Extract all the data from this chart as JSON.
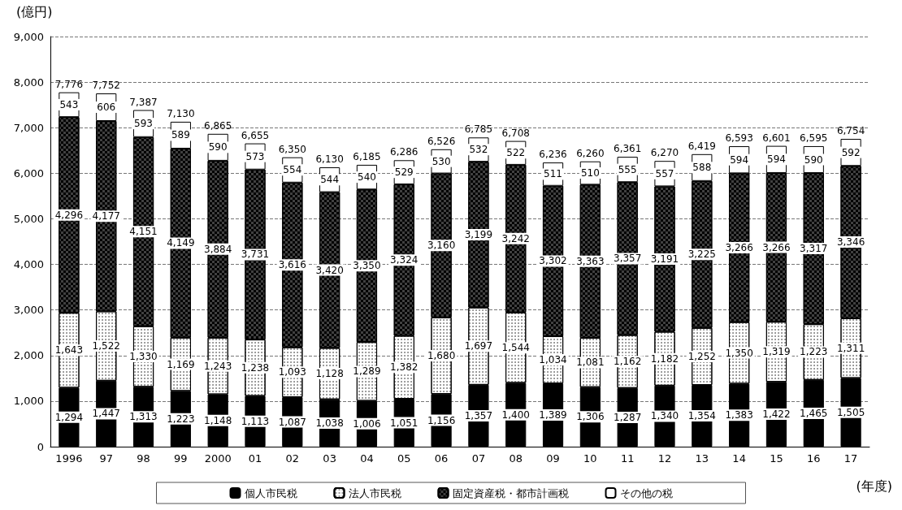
{
  "chart_data": {
    "type": "bar",
    "stacked": true,
    "ylabel": "(億円)",
    "xlabel": "(年度)",
    "categories": [
      "1996",
      "97",
      "98",
      "99",
      "2000",
      "01",
      "02",
      "03",
      "04",
      "05",
      "06",
      "07",
      "08",
      "09",
      "10",
      "11",
      "12",
      "13",
      "14",
      "15",
      "16",
      "17"
    ],
    "series": [
      {
        "name": "個人市民税",
        "color": "#000000",
        "values": [
          1294,
          1447,
          1313,
          1223,
          1148,
          1113,
          1087,
          1038,
          1006,
          1051,
          1156,
          1357,
          1400,
          1389,
          1306,
          1287,
          1340,
          1354,
          1383,
          1422,
          1465,
          1505
        ],
        "value_labels": [
          "1,294",
          "1,447",
          "1,313",
          "1,223",
          "1,148",
          "1,113",
          "1,087",
          "1,038",
          "1,006",
          "1,051",
          "1,156",
          "1,357",
          "1,400",
          "1,389",
          "1,306",
          "1,287",
          "1,340",
          "1,354",
          "1,383",
          "1,422",
          "1,465",
          "1,505"
        ]
      },
      {
        "name": "法人市民税",
        "color": "#ffffff",
        "values": [
          1643,
          1522,
          1330,
          1169,
          1243,
          1238,
          1093,
          1128,
          1289,
          1382,
          1680,
          1697,
          1544,
          1034,
          1081,
          1162,
          1182,
          1252,
          1350,
          1319,
          1223,
          1311
        ],
        "value_labels": [
          "1,643",
          "1,522",
          "1,330",
          "1,169",
          "1,243",
          "1,238",
          "1,093",
          "1,128",
          "1,289",
          "1,382",
          "1,680",
          "1,697",
          "1,544",
          "1,034",
          "1,081",
          "1,162",
          "1,182",
          "1,252",
          "1,350",
          "1,319",
          "1,223",
          "1,311"
        ]
      },
      {
        "name": "固定資産税・都市計画税",
        "color": "#404040",
        "values": [
          4296,
          4177,
          4151,
          4149,
          3884,
          3731,
          3616,
          3420,
          3350,
          3324,
          3160,
          3199,
          3242,
          3302,
          3363,
          3357,
          3191,
          3225,
          3266,
          3266,
          3317,
          3346
        ],
        "value_labels": [
          "4,296",
          "4,177",
          "4,151",
          "4,149",
          "3,884",
          "3,731",
          "3,616",
          "3,420",
          "3,350",
          "3,324",
          "3,160",
          "3,199",
          "3,242",
          "3,302",
          "3,363",
          "3,357",
          "3,191",
          "3,225",
          "3,266",
          "3,266",
          "3,317",
          "3,346"
        ]
      },
      {
        "name": "その他の税",
        "color": "#ffffff",
        "values": [
          543,
          606,
          593,
          589,
          590,
          573,
          554,
          544,
          540,
          529,
          530,
          532,
          522,
          511,
          510,
          555,
          557,
          588,
          594,
          594,
          590,
          592
        ],
        "value_labels": [
          "543",
          "606",
          "593",
          "589",
          "590",
          "573",
          "554",
          "544",
          "540",
          "529",
          "530",
          "532",
          "522",
          "511",
          "510",
          "555",
          "557",
          "588",
          "594",
          "594",
          "590",
          "592"
        ]
      }
    ],
    "totals": [
      "7,776",
      "7,752",
      "7,387",
      "7,130",
      "6,865",
      "6,655",
      "6,350",
      "6,130",
      "6,185",
      "6,286",
      "6,526",
      "6,785",
      "6,708",
      "6,236",
      "6,260",
      "6,361",
      "6,270",
      "6,419",
      "6,593",
      "6,601",
      "6,595",
      "6,754"
    ],
    "ylim": [
      0,
      9000
    ],
    "yticks": [
      0,
      {
        "value": 1000,
        "label": "1,000"
      },
      {
        "value": 2000,
        "label": "2,000"
      },
      {
        "value": 3000,
        "label": "3,000"
      },
      {
        "value": 4000,
        "label": "4,000"
      },
      {
        "value": 5000,
        "label": "5,000"
      },
      {
        "value": 6000,
        "label": "6,000"
      },
      {
        "value": 7000,
        "label": "7,000"
      },
      {
        "value": 8000,
        "label": "8,000"
      },
      {
        "value": 9000,
        "label": "9,000"
      }
    ],
    "grid": "y",
    "legend": "bottom"
  }
}
